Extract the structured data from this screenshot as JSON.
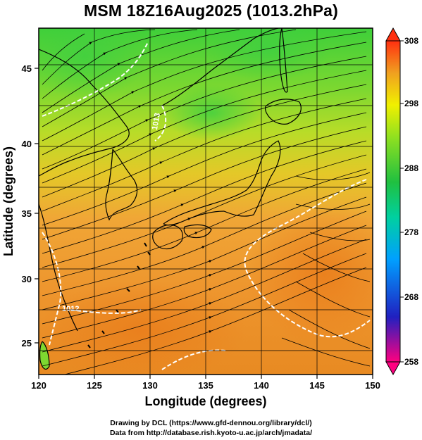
{
  "title": "MSM 18Z16Aug2025 (1013.2hPa)",
  "credits": {
    "line1": "Drawing by DCL (https://www.gfd-dennou.org/library/dcl/)",
    "line2": "Data from http://database.rish.kyoto-u.ac.jp/arch/jmadata/"
  },
  "map": {
    "xlabel": "Longitude (degrees)",
    "ylabel": "Latitude  (degrees)",
    "lon_range": [
      120,
      150
    ],
    "lat_range": [
      22.4,
      47.6
    ],
    "lon_ticks": [
      "120",
      "125",
      "130",
      "135",
      "140",
      "145",
      "150"
    ],
    "lat_ticks": [
      "25",
      "30",
      "35",
      "40",
      "45"
    ],
    "contour_labels": [
      "1012",
      "1013"
    ],
    "colors": {
      "cold": "#22bb22",
      "mid": "#c8e020",
      "warm": "#f0a030",
      "hot": "#e87820",
      "coast": "#000000",
      "streamline": "#000000",
      "isobar": "#ffffff"
    }
  },
  "colorbar": {
    "min": 258,
    "max": 308,
    "labels": [
      "308",
      "298",
      "288",
      "278",
      "268",
      "258"
    ],
    "stops": [
      "#ff0080",
      "#2020c0",
      "#00a0ff",
      "#00d0a0",
      "#20c040",
      "#90e020",
      "#f0f000",
      "#f0a020",
      "#ff3010"
    ]
  }
}
